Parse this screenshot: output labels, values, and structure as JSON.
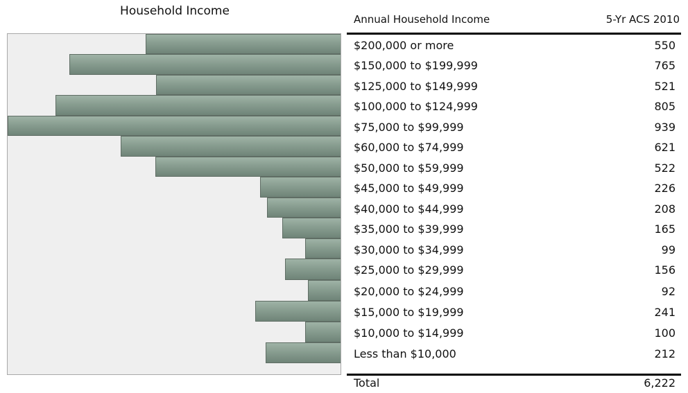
{
  "chart_data": {
    "type": "bar",
    "orientation": "horizontal",
    "title": "Household Income",
    "categories": [
      "$200,000 or more",
      "$150,000 to $199,999",
      "$125,000 to $149,999",
      "$100,000 to $124,999",
      "$75,000 to $99,999",
      "$60,000 to $74,999",
      "$50,000 to $59,999",
      "$45,000 to $49,999",
      "$40,000 to $44,999",
      "$35,000 to $39,999",
      "$30,000 to $34,999",
      "$25,000 to $29,999",
      "$20,000 to $24,999",
      "$15,000 to $19,999",
      "$10,000 to $14,999",
      "Less than $10,000"
    ],
    "values": [
      550,
      765,
      521,
      805,
      939,
      621,
      522,
      226,
      208,
      165,
      99,
      156,
      92,
      241,
      100,
      212
    ],
    "value_labels": [
      "550",
      "765",
      "521",
      "805",
      "939",
      "621",
      "522",
      "226",
      "208",
      "165",
      "99",
      "156",
      "92",
      "241",
      "100",
      "212"
    ],
    "xlim": [
      0,
      939
    ],
    "bar_color": "#889d90",
    "grid": false
  },
  "table": {
    "header_label": "Annual Household Income",
    "header_value": "5-Yr ACS 2010",
    "total_label": "Total",
    "total_value": "6,222"
  }
}
